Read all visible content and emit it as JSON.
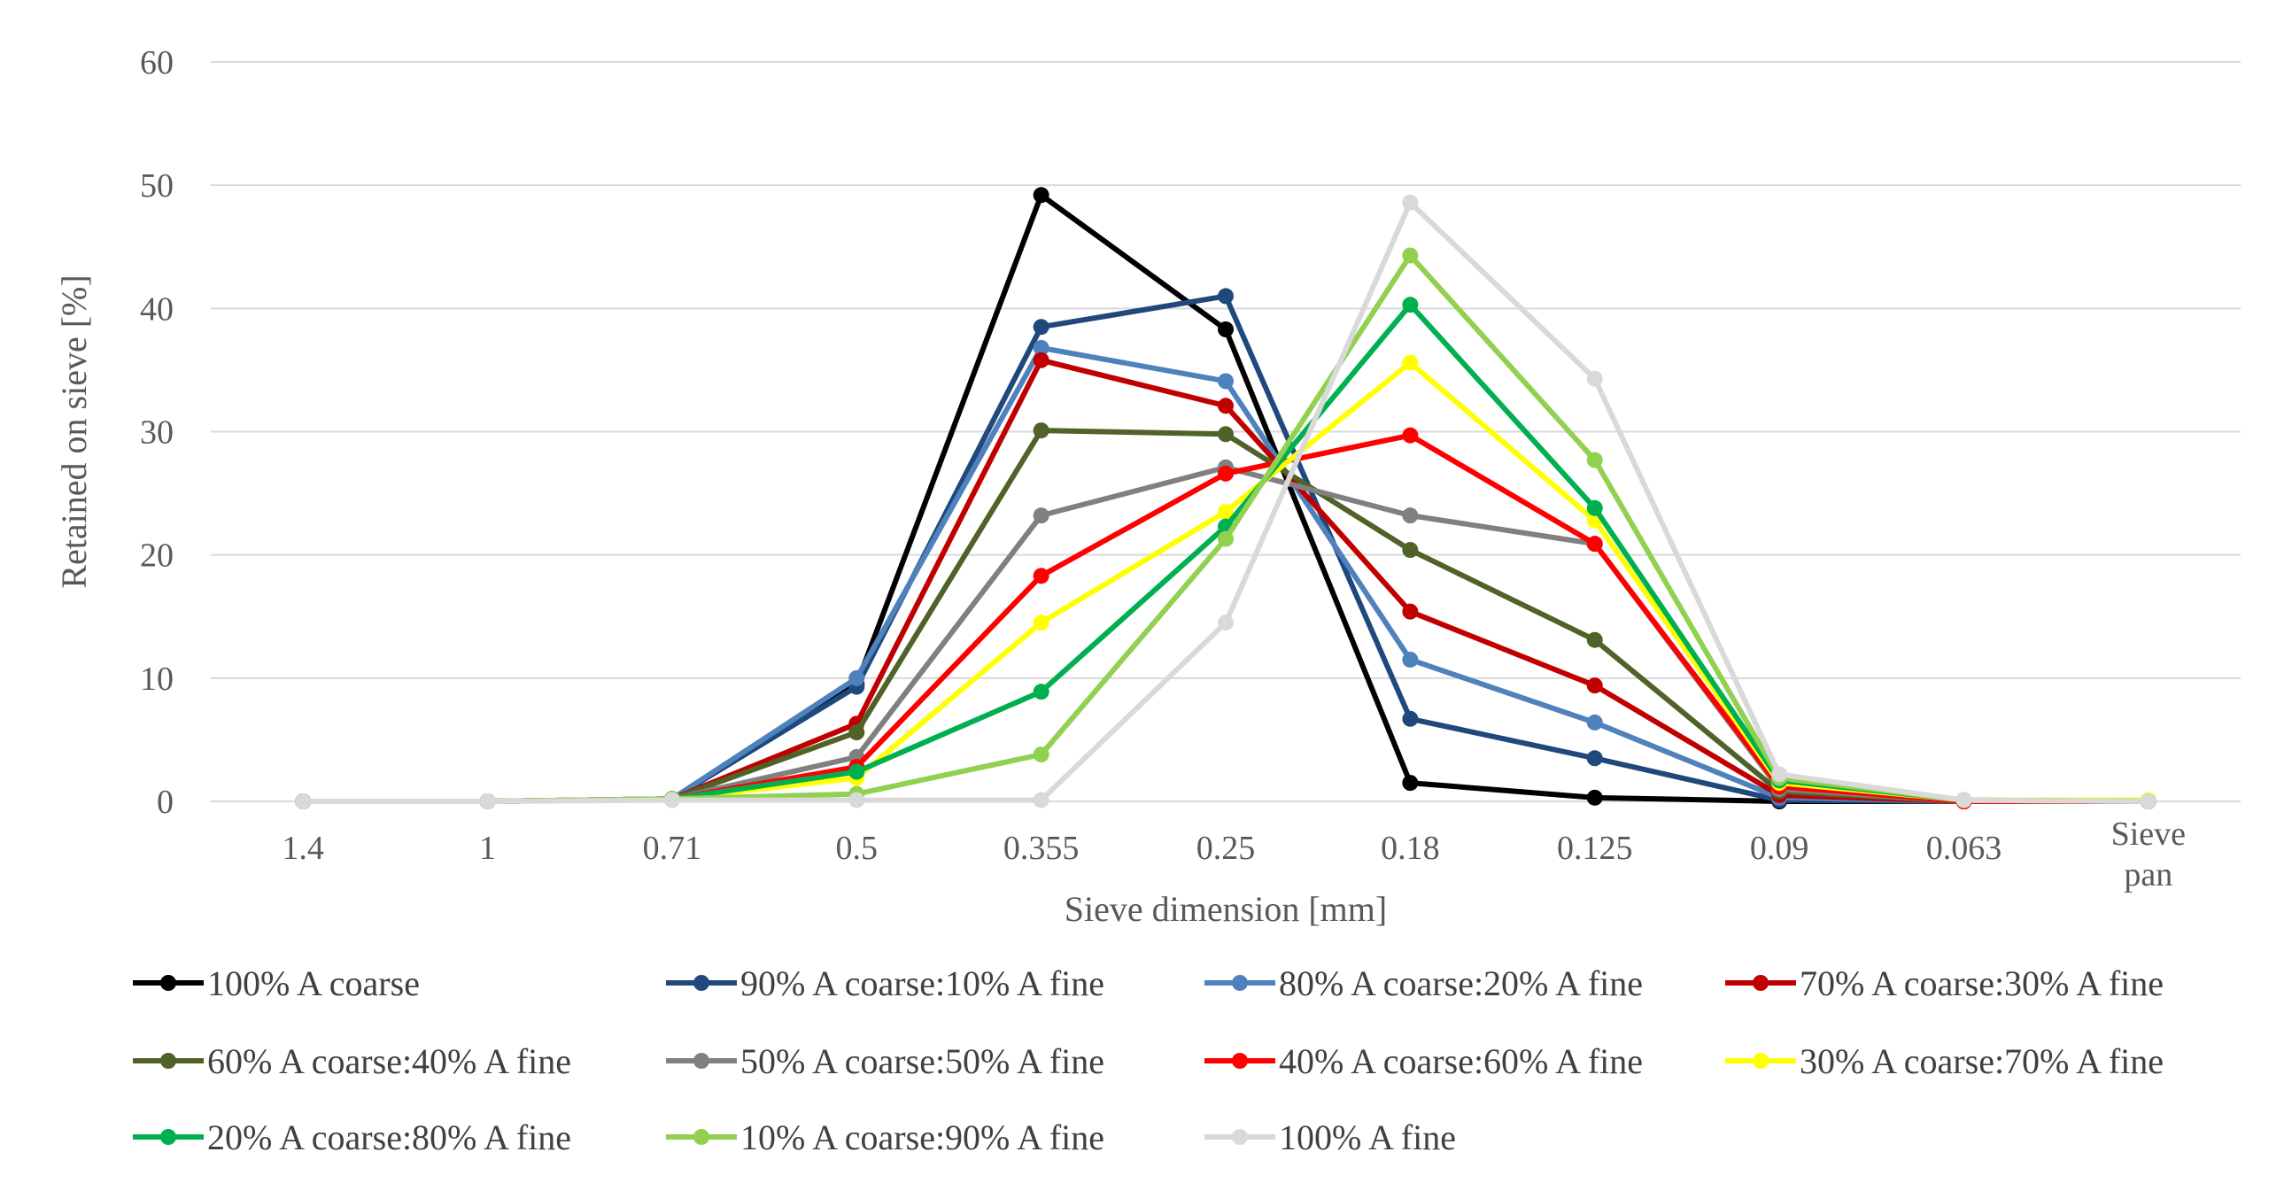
{
  "chart_data": {
    "type": "line",
    "title": "",
    "xlabel": "Sieve dimension [mm]",
    "ylabel": "Retained on sieve [%]",
    "categories": [
      "1.4",
      "1",
      "0.71",
      "0.5",
      "0.355",
      "0.25",
      "0.18",
      "0.125",
      "0.09",
      "0.063",
      "Sieve pan"
    ],
    "ylim": [
      0,
      60
    ],
    "yticks": [
      "0",
      "10",
      "20",
      "30",
      "40",
      "50",
      "60"
    ],
    "grid": "horizontal",
    "legend_position": "bottom",
    "series": [
      {
        "name": "100% A coarse",
        "color": "#000000",
        "values": [
          0,
          0,
          0.2,
          9.5,
          49.2,
          38.3,
          1.5,
          0.3,
          0,
          0,
          0
        ]
      },
      {
        "name": "90% A coarse:10% A fine",
        "color": "#1f497d",
        "values": [
          0,
          0,
          0.2,
          9.3,
          38.5,
          41.0,
          6.7,
          3.5,
          0.1,
          0,
          0
        ]
      },
      {
        "name": "80% A coarse:20% A fine",
        "color": "#4f81bd",
        "values": [
          0,
          0,
          0.2,
          10.0,
          36.8,
          34.1,
          11.5,
          6.4,
          0.3,
          0,
          0
        ]
      },
      {
        "name": "70% A coarse:30% A fine",
        "color": "#c00000",
        "values": [
          0,
          0,
          0.2,
          6.3,
          35.8,
          32.1,
          15.4,
          9.4,
          0.5,
          0,
          0
        ]
      },
      {
        "name": "60% A coarse:40% A fine",
        "color": "#4f6228",
        "values": [
          0,
          0,
          0.2,
          5.6,
          30.1,
          29.8,
          20.4,
          13.1,
          0.8,
          0,
          0
        ]
      },
      {
        "name": "50% A coarse:50% A fine",
        "color": "#808080",
        "values": [
          0,
          0,
          0.2,
          3.6,
          23.2,
          27.1,
          23.2,
          20.9,
          1.0,
          0,
          0
        ]
      },
      {
        "name": "40% A coarse:60% A fine",
        "color": "#ff0000",
        "values": [
          0,
          0,
          0.2,
          2.8,
          18.3,
          26.6,
          29.7,
          20.9,
          1.2,
          0,
          0
        ]
      },
      {
        "name": "30% A coarse:70% A fine",
        "color": "#ffff00",
        "values": [
          0,
          0,
          0.2,
          1.9,
          14.5,
          23.5,
          35.6,
          22.8,
          1.5,
          0.1,
          0.1
        ]
      },
      {
        "name": "20% A coarse:80% A fine",
        "color": "#00b050",
        "values": [
          0,
          0,
          0.2,
          2.4,
          8.9,
          22.3,
          40.3,
          23.8,
          1.7,
          0.1,
          0
        ]
      },
      {
        "name": "10% A coarse:90% A fine",
        "color": "#92d050",
        "values": [
          0,
          0,
          0.2,
          0.6,
          3.8,
          21.3,
          44.3,
          27.7,
          1.9,
          0.1,
          0
        ]
      },
      {
        "name": "100% A fine",
        "color": "#d9d9d9",
        "values": [
          0,
          0,
          0.1,
          0.1,
          0.1,
          14.5,
          48.6,
          34.3,
          2.2,
          0.1,
          0
        ]
      }
    ]
  }
}
